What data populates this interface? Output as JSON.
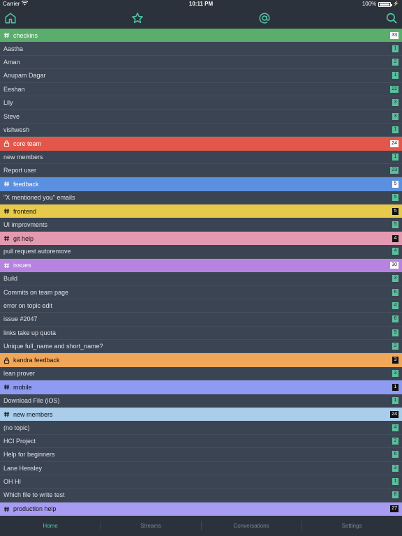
{
  "status_bar": {
    "carrier": "Carrier",
    "time": "10:11 PM",
    "battery": "100%"
  },
  "top_nav": {
    "icons": [
      "home-icon",
      "star-icon",
      "at-icon",
      "search-icon"
    ],
    "accent": "#53c4a6"
  },
  "sections": [
    {
      "stream": {
        "name": "checkins",
        "icon": "hash",
        "color": "#5bad6b",
        "count": "33",
        "badge": "light"
      },
      "topics": [
        {
          "name": "Aastha",
          "count": "1"
        },
        {
          "name": "Aman",
          "count": "2"
        },
        {
          "name": "Anupam Dagar",
          "count": "1"
        },
        {
          "name": "Eeshan",
          "count": "22"
        },
        {
          "name": "Lily",
          "count": "3"
        },
        {
          "name": "Steve",
          "count": "3"
        },
        {
          "name": "vishwesh",
          "count": "1"
        }
      ]
    },
    {
      "stream": {
        "name": "core team",
        "icon": "lock",
        "color": "#e3574a",
        "count": "24",
        "badge": "light"
      },
      "topics": [
        {
          "name": "new members",
          "count": "1"
        },
        {
          "name": "Report user",
          "count": "23"
        }
      ]
    },
    {
      "stream": {
        "name": "feedback",
        "icon": "hash",
        "color": "#5b8fe0",
        "count": "5",
        "badge": "light"
      },
      "topics": [
        {
          "name": "\"X mentioned you\" emails",
          "count": "5"
        }
      ]
    },
    {
      "stream": {
        "name": "frontend",
        "icon": "hash",
        "color": "#e7c94b",
        "count": "5",
        "badge": "dark",
        "text": "#111111"
      },
      "topics": [
        {
          "name": "UI improvments",
          "count": "5"
        }
      ]
    },
    {
      "stream": {
        "name": "git help",
        "icon": "hash",
        "color": "#e39ab0",
        "count": "4",
        "badge": "dark",
        "text": "#111111"
      },
      "topics": [
        {
          "name": "pull request autoremove",
          "count": "4"
        }
      ]
    },
    {
      "stream": {
        "name": "issues",
        "icon": "hash",
        "color": "#b783e0",
        "count": "30",
        "badge": "light"
      },
      "topics": [
        {
          "name": "Build",
          "count": "3"
        },
        {
          "name": "Commits  on team page",
          "count": "6"
        },
        {
          "name": "error on topic edit",
          "count": "4"
        },
        {
          "name": "issue #2047",
          "count": "6"
        },
        {
          "name": "links take up quota",
          "count": "9"
        },
        {
          "name": "Unique full_name and short_name?",
          "count": "2"
        }
      ]
    },
    {
      "stream": {
        "name": "kandra feedback",
        "icon": "lock",
        "color": "#f1a75a",
        "count": "3",
        "badge": "dark",
        "text": "#111111"
      },
      "topics": [
        {
          "name": "lean prover",
          "count": "3"
        }
      ]
    },
    {
      "stream": {
        "name": "mobile",
        "icon": "hash",
        "color": "#8f9bf2",
        "count": "1",
        "badge": "dark",
        "text": "#111111"
      },
      "topics": [
        {
          "name": "Download File (iOS)",
          "count": "1"
        }
      ]
    },
    {
      "stream": {
        "name": "new members",
        "icon": "hash",
        "color": "#a9cdeb",
        "count": "24",
        "badge": "dark",
        "text": "#111111"
      },
      "topics": [
        {
          "name": "(no topic)",
          "count": "4"
        },
        {
          "name": "HCI Project",
          "count": "2"
        },
        {
          "name": "Help for beginners",
          "count": "6"
        },
        {
          "name": "Lane Hensley",
          "count": "3"
        },
        {
          "name": "OH HI",
          "count": "1"
        },
        {
          "name": "Which file to write test",
          "count": "8"
        }
      ]
    },
    {
      "stream": {
        "name": "production help",
        "icon": "hash",
        "color": "#a79cf2",
        "count": "27",
        "badge": "dark",
        "text": "#111111"
      },
      "topics": []
    }
  ],
  "tab_bar": {
    "tabs": [
      {
        "label": "Home",
        "active": true
      },
      {
        "label": "Streams",
        "active": false
      },
      {
        "label": "Conversations",
        "active": false
      },
      {
        "label": "Settings",
        "active": false
      }
    ]
  }
}
